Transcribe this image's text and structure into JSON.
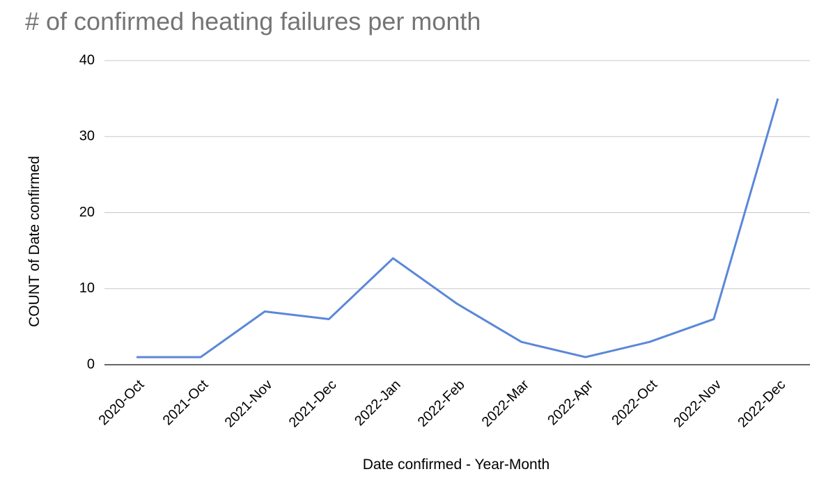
{
  "chart_data": {
    "type": "line",
    "title": "# of confirmed heating failures per month",
    "x_label": "Date confirmed - Year-Month",
    "y_label": "COUNT of Date confirmed",
    "categories": [
      "2020-Oct",
      "2021-Oct",
      "2021-Nov",
      "2021-Dec",
      "2022-Jan",
      "2022-Feb",
      "2022-Mar",
      "2022-Apr",
      "2022-Oct",
      "2022-Nov",
      "2022-Dec"
    ],
    "series": [
      {
        "name": "COUNT of Date confirmed",
        "color": "#5a87d9",
        "values": [
          1,
          1,
          7,
          6,
          14,
          8,
          3,
          1,
          3,
          6,
          35
        ]
      }
    ],
    "ylim": [
      0,
      40
    ],
    "yticks": [
      0,
      10,
      20,
      30,
      40
    ],
    "grid": true
  }
}
